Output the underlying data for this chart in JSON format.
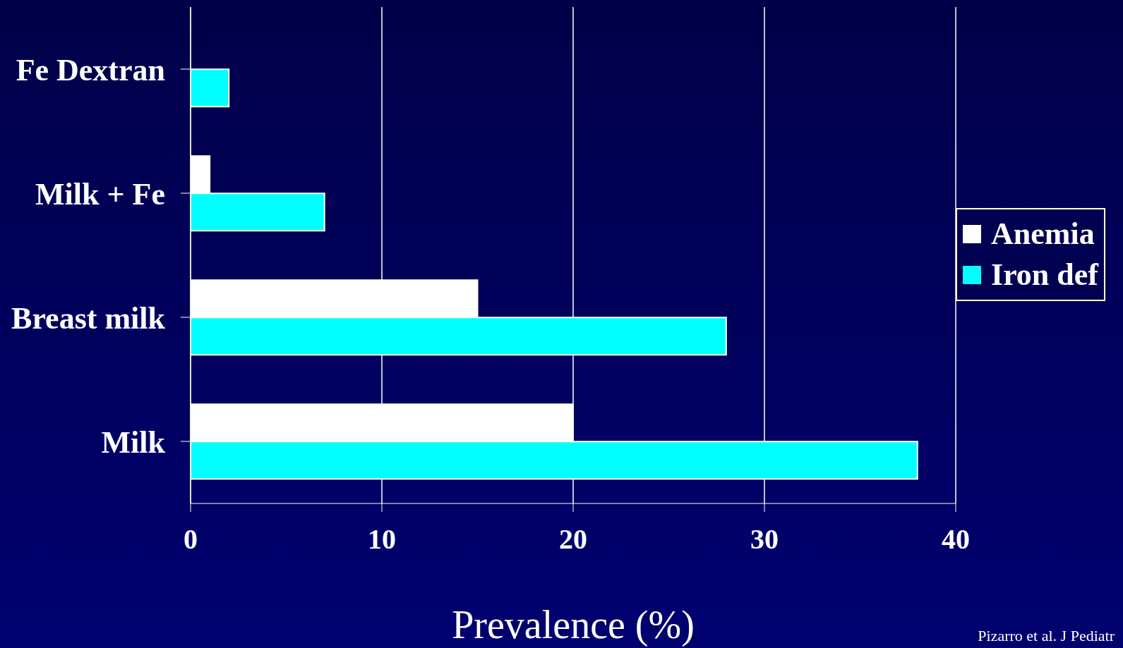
{
  "chart_data": {
    "type": "bar",
    "orientation": "horizontal",
    "xlabel": "Prevalence (%)",
    "categories": [
      "Fe Dextran",
      "Milk + Fe",
      "Breast milk",
      "Milk"
    ],
    "series": [
      {
        "name": "Anemia",
        "color": "#ffffff",
        "values": [
          0,
          1,
          15,
          20
        ]
      },
      {
        "name": "Iron def",
        "color": "#00ffff",
        "values": [
          2,
          7,
          28,
          38
        ]
      }
    ],
    "xlim": [
      0,
      40
    ],
    "xticks": [
      0,
      10,
      20,
      30,
      40
    ],
    "grid": "x",
    "legend": "right",
    "annotations": [
      "Pizarro et al. J Pediatr"
    ]
  }
}
